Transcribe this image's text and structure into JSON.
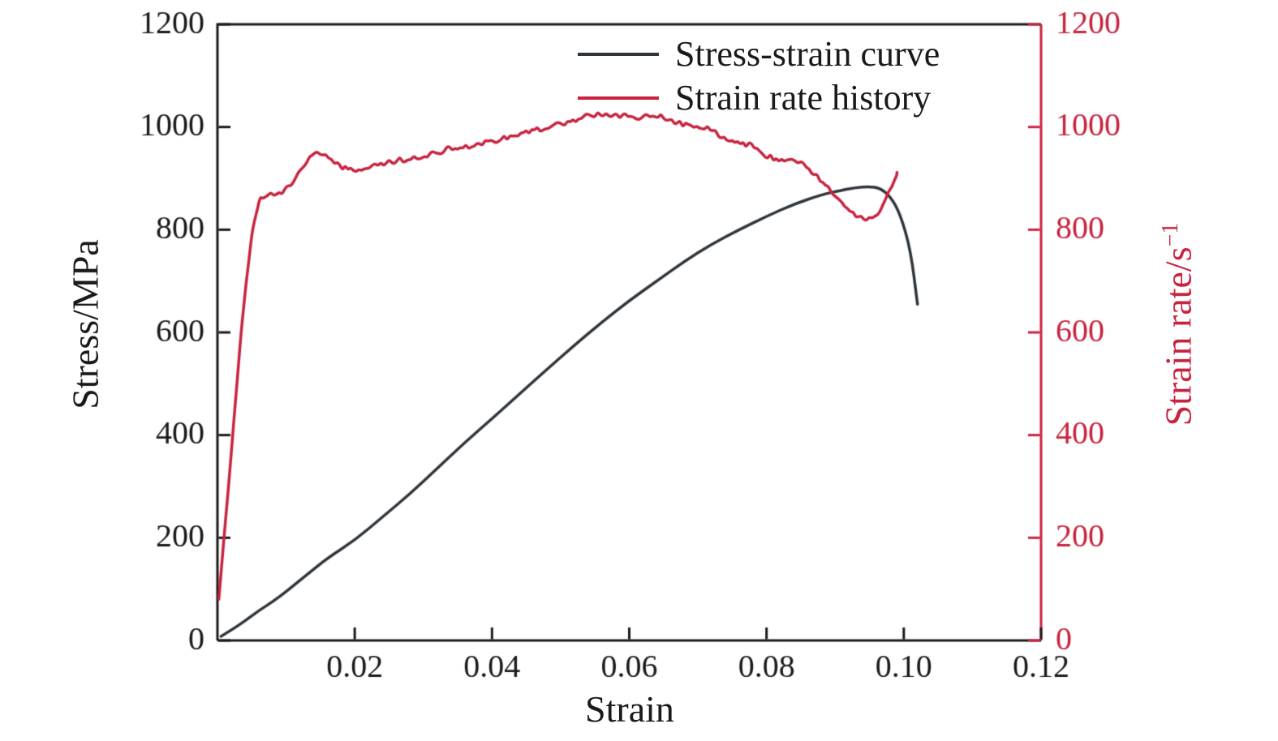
{
  "chart_data": {
    "type": "line",
    "title": "",
    "xlabel": "Strain",
    "ylabel_left": "Stress/MPa",
    "ylabel_right_main": "Strain rate/s",
    "ylabel_right_sup": "−1",
    "xlim": [
      0,
      0.12
    ],
    "ylim_left": [
      0,
      1200
    ],
    "ylim_right": [
      0,
      1200
    ],
    "xticks": [
      0.02,
      0.04,
      0.06,
      0.08,
      0.1,
      0.12
    ],
    "xtick_labels": [
      "0.02",
      "0.04",
      "0.06",
      "0.08",
      "0.10",
      "0.12"
    ],
    "yticks_left": [
      0,
      200,
      400,
      600,
      800,
      1000,
      1200
    ],
    "yticks_right": [
      0,
      200,
      400,
      600,
      800,
      1000,
      1200
    ],
    "grid": false,
    "legend_position": "top-center-inside",
    "colors": {
      "left_axis": "#1a1a1a",
      "right_axis": "#c8233f",
      "stress_curve": "#2e353b",
      "strain_rate_curve": "#c8233f"
    },
    "series": [
      {
        "name": "Stress-strain curve",
        "axis": "left",
        "color": "#2e353b",
        "noise": 0,
        "x": [
          0.0005,
          0.002,
          0.004,
          0.006,
          0.008,
          0.01,
          0.013,
          0.016,
          0.02,
          0.024,
          0.028,
          0.032,
          0.036,
          0.04,
          0.044,
          0.048,
          0.052,
          0.056,
          0.06,
          0.064,
          0.068,
          0.072,
          0.076,
          0.08,
          0.084,
          0.088,
          0.091,
          0.093,
          0.095,
          0.0965,
          0.098,
          0.0995,
          0.101,
          0.102
        ],
        "y": [
          8,
          20,
          38,
          58,
          75,
          95,
          128,
          160,
          195,
          240,
          285,
          335,
          385,
          432,
          480,
          528,
          575,
          620,
          662,
          700,
          738,
          772,
          800,
          826,
          850,
          868,
          877,
          882,
          884,
          881,
          866,
          830,
          760,
          655
        ]
      },
      {
        "name": "Strain rate history",
        "axis": "right",
        "color": "#c8233f",
        "noise": 6,
        "x": [
          0.0002,
          0.001,
          0.002,
          0.003,
          0.004,
          0.005,
          0.006,
          0.007,
          0.008,
          0.009,
          0.01,
          0.0115,
          0.013,
          0.0145,
          0.0155,
          0.017,
          0.018,
          0.02,
          0.022,
          0.025,
          0.028,
          0.031,
          0.034,
          0.037,
          0.04,
          0.043,
          0.046,
          0.049,
          0.052,
          0.055,
          0.058,
          0.061,
          0.064,
          0.066,
          0.068,
          0.07,
          0.072,
          0.074,
          0.076,
          0.078,
          0.08,
          0.082,
          0.084,
          0.086,
          0.088,
          0.09,
          0.092,
          0.094,
          0.0955,
          0.097,
          0.098,
          0.099
        ],
        "y": [
          80,
          210,
          360,
          530,
          680,
          790,
          855,
          868,
          870,
          872,
          878,
          905,
          935,
          950,
          948,
          930,
          922,
          918,
          924,
          932,
          938,
          948,
          958,
          964,
          972,
          982,
          992,
          1002,
          1014,
          1024,
          1022,
          1020,
          1023,
          1015,
          1003,
          1004,
          996,
          978,
          968,
          962,
          945,
          934,
          938,
          921,
          895,
          868,
          838,
          820,
          818,
          852,
          880,
          912
        ]
      }
    ]
  }
}
